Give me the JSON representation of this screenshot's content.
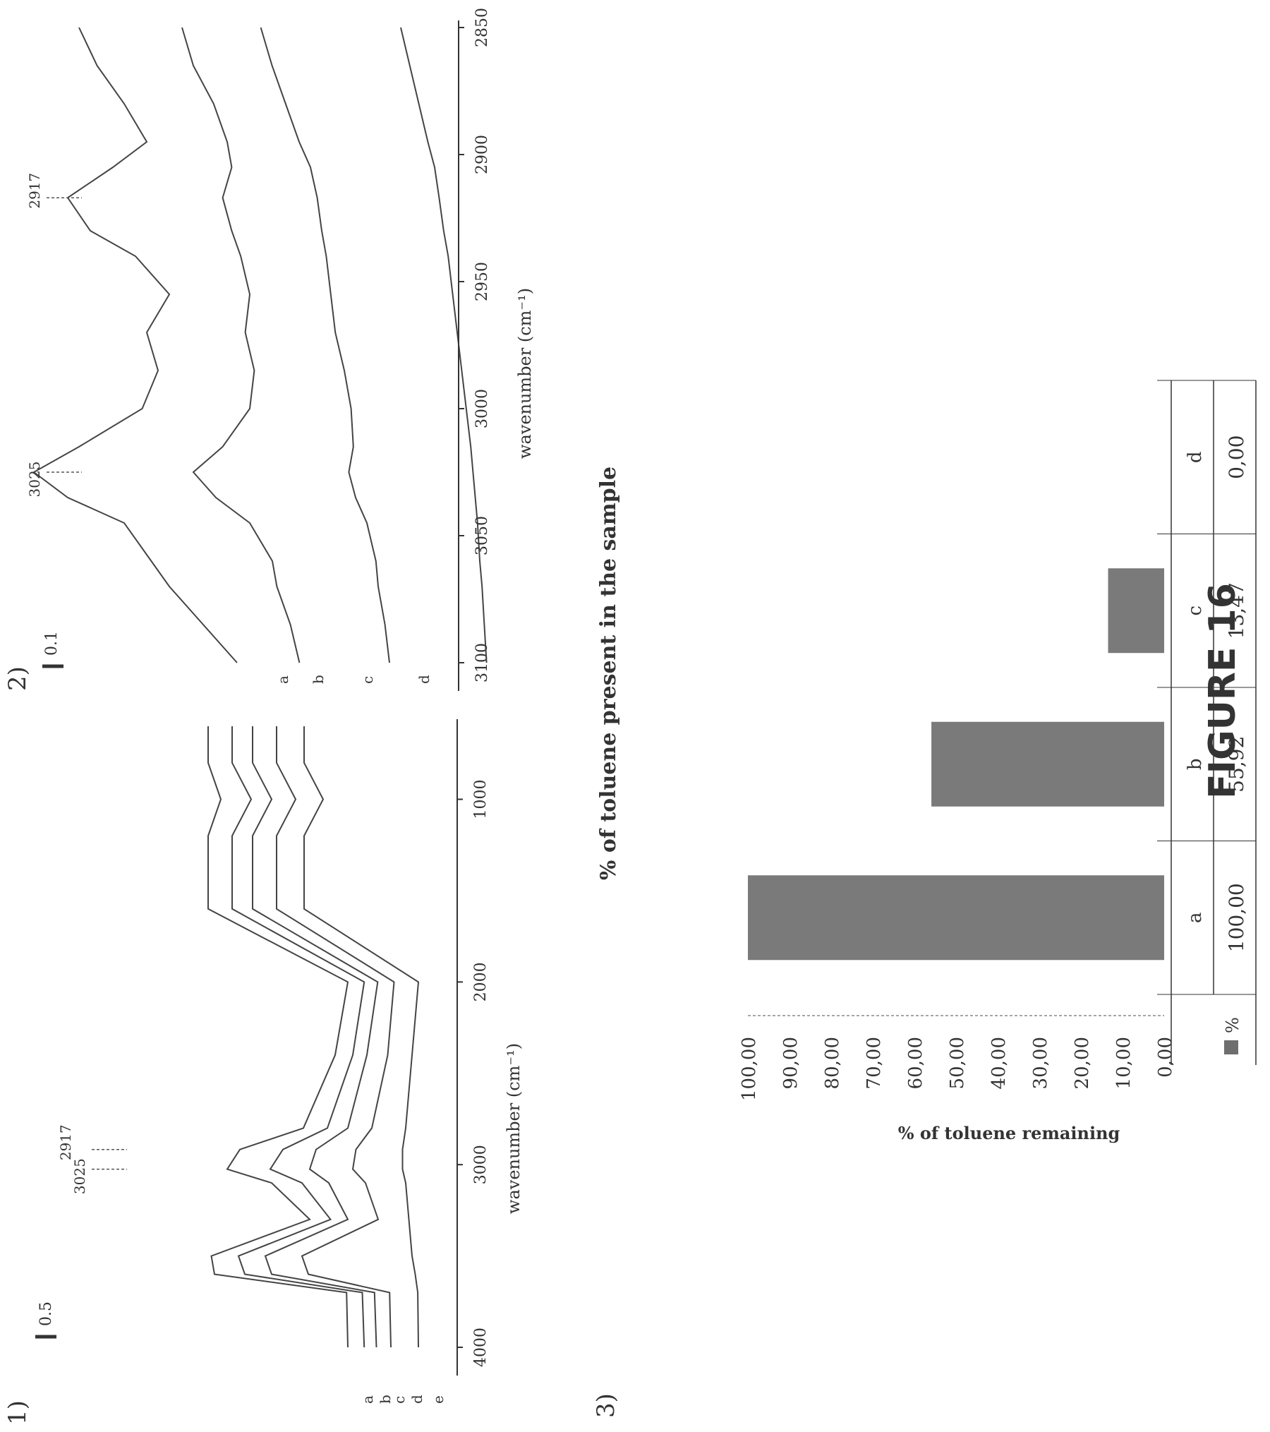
{
  "figure": {
    "caption": "FIGURE 16",
    "panel_labels": [
      "1)",
      "2)",
      "3)"
    ]
  },
  "chart_data": [
    {
      "type": "line",
      "panel": "1)",
      "xlabel": "wavenumber (cm⁻¹)",
      "xlim": [
        4000,
        600
      ],
      "x_ticks": [
        4000,
        3000,
        2000,
        1000
      ],
      "x_tick_labels": [
        "4000",
        "3000",
        "2000",
        "1000"
      ],
      "scale_bar_label": "0.5",
      "series": [
        {
          "name": "a",
          "x": [
            4000,
            3700,
            3600,
            3500,
            3300,
            3100,
            3025,
            2917,
            2800,
            2400,
            2000,
            1600,
            1200,
            1000,
            800,
            600
          ],
          "y": [
            0.3,
            0.32,
            2.4,
            2.45,
            0.9,
            1.5,
            2.2,
            2.0,
            1.0,
            0.5,
            0.3,
            2.5,
            2.5,
            2.3,
            2.5,
            2.5
          ]
        },
        {
          "name": "b",
          "x": [
            4000,
            3700,
            3600,
            3500,
            3300,
            3100,
            3025,
            2917,
            2800,
            2400,
            2000,
            1600,
            1200,
            1000,
            800,
            600
          ],
          "y": [
            0.32,
            0.35,
            2.2,
            2.3,
            0.85,
            1.3,
            1.8,
            1.6,
            0.9,
            0.5,
            0.32,
            2.4,
            2.4,
            2.1,
            2.4,
            2.4
          ]
        },
        {
          "name": "c",
          "x": [
            4000,
            3700,
            3600,
            3500,
            3300,
            3100,
            3025,
            2917,
            2800,
            2400,
            2000,
            1600,
            1200,
            1000,
            800,
            600
          ],
          "y": [
            0.35,
            0.38,
            2.0,
            2.1,
            0.8,
            1.1,
            1.4,
            1.3,
            0.8,
            0.5,
            0.33,
            2.3,
            2.3,
            2.0,
            2.3,
            2.3
          ]
        },
        {
          "name": "d",
          "x": [
            4000,
            3700,
            3600,
            3500,
            3300,
            3100,
            3025,
            2917,
            2800,
            2400,
            2000,
            1600,
            1200,
            1000,
            800,
            600
          ],
          "y": [
            0.4,
            0.42,
            1.7,
            1.8,
            0.6,
            0.8,
            1.0,
            0.95,
            0.7,
            0.45,
            0.35,
            2.2,
            2.2,
            1.9,
            2.2,
            2.2
          ]
        },
        {
          "name": "e",
          "x": [
            4000,
            3700,
            3600,
            3500,
            3300,
            3100,
            3025,
            2917,
            2800,
            2400,
            2000,
            1600,
            1200,
            1000,
            800,
            600
          ],
          "y": [
            0.3,
            0.31,
            0.35,
            0.4,
            0.45,
            0.5,
            0.55,
            0.55,
            0.5,
            0.4,
            0.3,
            2.1,
            2.1,
            1.8,
            2.1,
            2.1
          ]
        }
      ],
      "annotations": [
        {
          "text": "3025",
          "x": 3025
        },
        {
          "text": "2917",
          "x": 2917
        }
      ]
    },
    {
      "type": "line",
      "panel": "2)",
      "xlabel": "wavenumber (cm⁻¹)",
      "xlim": [
        3100,
        2850
      ],
      "x_ticks": [
        3100,
        3050,
        3000,
        2950,
        2900,
        2850
      ],
      "x_tick_labels": [
        "3100",
        "3050",
        "3000",
        "2950",
        "2900",
        "2850"
      ],
      "scale_bar_label": "0.1",
      "series": [
        {
          "name": "a",
          "x": [
            3100,
            3085,
            3070,
            3060,
            3045,
            3035,
            3025,
            3015,
            3000,
            2985,
            2970,
            2955,
            2940,
            2930,
            2917,
            2905,
            2895,
            2880,
            2865,
            2850
          ],
          "y": [
            0.2,
            0.35,
            0.5,
            0.58,
            0.7,
            0.95,
            1.1,
            0.9,
            0.62,
            0.55,
            0.6,
            0.5,
            0.65,
            0.85,
            0.95,
            0.75,
            0.6,
            0.7,
            0.82,
            0.9
          ]
        },
        {
          "name": "b",
          "x": [
            3100,
            3085,
            3070,
            3060,
            3045,
            3035,
            3025,
            3015,
            3000,
            2985,
            2970,
            2955,
            2940,
            2930,
            2917,
            2905,
            2895,
            2880,
            2865,
            2850
          ],
          "y": [
            0.08,
            0.12,
            0.18,
            0.2,
            0.3,
            0.45,
            0.55,
            0.42,
            0.3,
            0.28,
            0.32,
            0.3,
            0.34,
            0.38,
            0.42,
            0.38,
            0.4,
            0.46,
            0.55,
            0.6
          ]
        },
        {
          "name": "c",
          "x": [
            3100,
            3085,
            3070,
            3060,
            3045,
            3035,
            3025,
            3015,
            3000,
            2985,
            2970,
            2955,
            2940,
            2930,
            2917,
            2905,
            2895,
            2880,
            2865,
            2850
          ],
          "y": [
            -0.1,
            -0.08,
            -0.05,
            -0.04,
            0.0,
            0.05,
            0.08,
            0.06,
            0.07,
            0.1,
            0.14,
            0.16,
            0.18,
            0.2,
            0.22,
            0.25,
            0.3,
            0.36,
            0.42,
            0.47
          ]
        },
        {
          "name": "d",
          "x": [
            3100,
            3085,
            3070,
            3060,
            3045,
            3035,
            3025,
            3015,
            3000,
            2985,
            2970,
            2955,
            2940,
            2930,
            2917,
            2905,
            2895,
            2880,
            2865,
            2850
          ],
          "y": [
            -0.28,
            -0.27,
            -0.26,
            -0.25,
            -0.24,
            -0.23,
            -0.22,
            -0.21,
            -0.19,
            -0.17,
            -0.15,
            -0.13,
            -0.11,
            -0.09,
            -0.07,
            -0.05,
            -0.02,
            0.02,
            0.06,
            0.1
          ]
        }
      ],
      "annotations": [
        {
          "text": "3025",
          "x": 3025
        },
        {
          "text": "2917",
          "x": 2917
        }
      ]
    },
    {
      "type": "bar",
      "panel": "3)",
      "title": "% of toluene present in the sample",
      "ylabel": "% of toluene remaining",
      "categories": [
        "a",
        "b",
        "c",
        "d"
      ],
      "series": [
        {
          "name": "%",
          "values": [
            100.0,
            55.92,
            13.47,
            0.0
          ]
        }
      ],
      "value_labels": [
        "100,00",
        "55,92",
        "13,47",
        "0,00"
      ],
      "ylim": [
        0,
        100
      ],
      "y_tick_labels": [
        "0,00",
        "10,00",
        "20,00",
        "30,00",
        "40,00",
        "50,00",
        "60,00",
        "70,00",
        "80,00",
        "90,00",
        "100,00"
      ],
      "legend_swatch_color": "#6e6e6e",
      "bar_color": "#7a7a7a"
    }
  ]
}
